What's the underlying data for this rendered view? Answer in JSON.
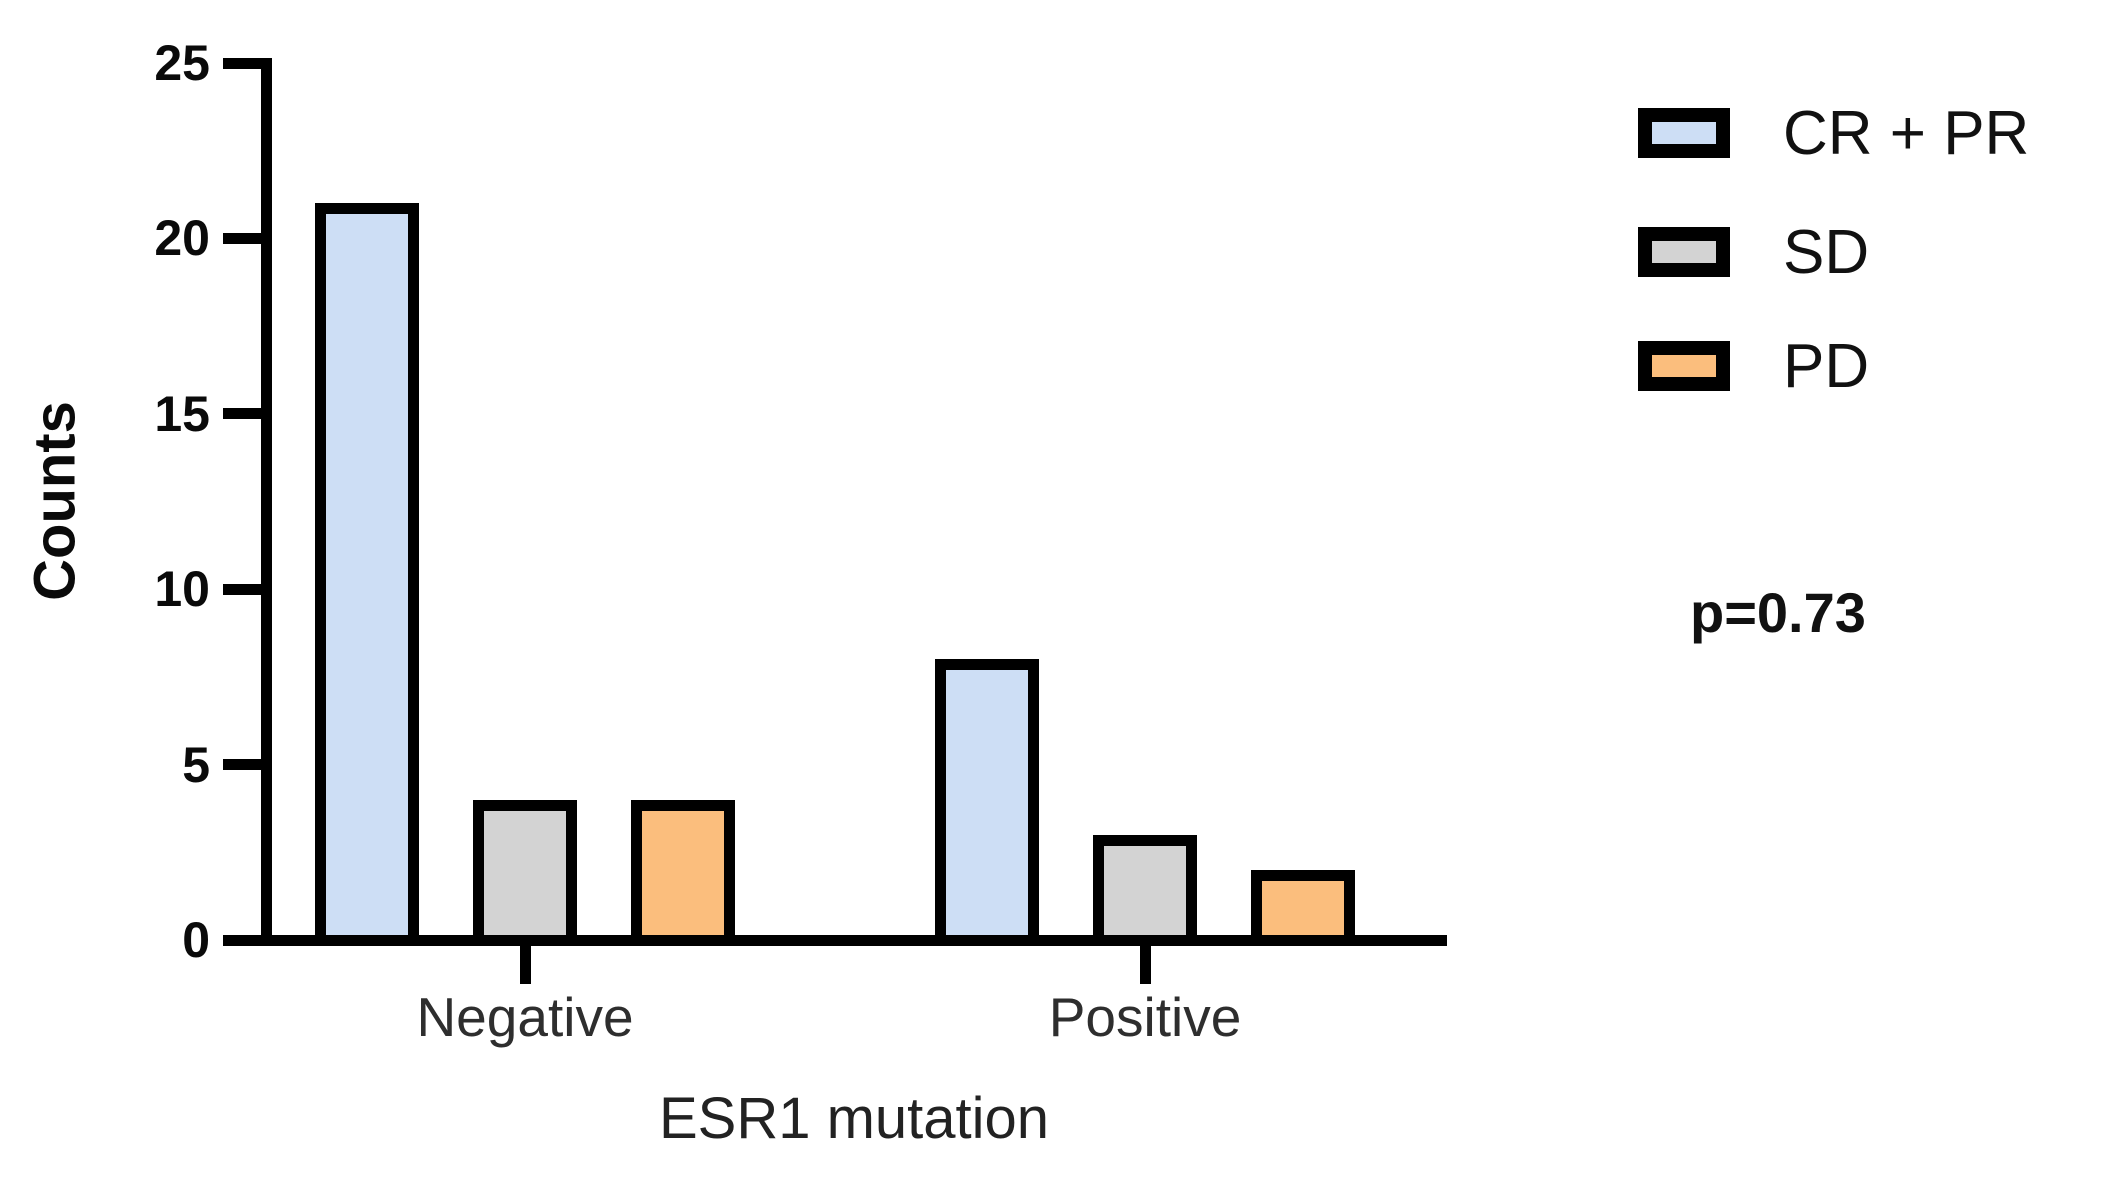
{
  "figure": {
    "background_color": "#ffffff",
    "axis_color": "#000000",
    "tick_label_color": "#0a0a0a",
    "category_label_color": "#2e2e2e"
  },
  "chart_data": {
    "type": "bar",
    "title": "",
    "xlabel": "ESR1 mutation",
    "ylabel": "Counts",
    "categories": [
      "Negative",
      "Positive"
    ],
    "series": [
      {
        "name": "CR + PR",
        "color": "#CDDEF5",
        "values": [
          21,
          8
        ]
      },
      {
        "name": "SD",
        "color": "#D3D3D3",
        "values": [
          4,
          3
        ]
      },
      {
        "name": "PD",
        "color": "#FBBE7D",
        "values": [
          4,
          2
        ]
      }
    ],
    "ylim": [
      0,
      25
    ],
    "yticks": [
      0,
      5,
      10,
      15,
      20,
      25
    ],
    "grid": false,
    "bar_border_color": "#000000",
    "legend_position": "top-right",
    "annotation": "p=0.73"
  }
}
